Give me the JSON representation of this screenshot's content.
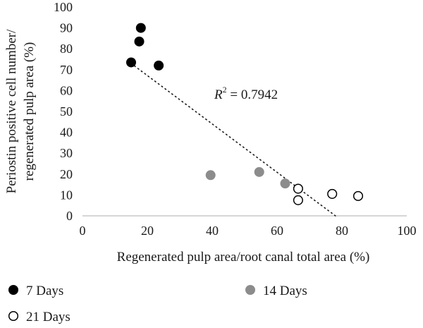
{
  "chart_data": {
    "type": "scatter",
    "xlabel": "Regenerated pulp area/root canal total area (%)",
    "ylabel_line1": "Periostin positive cell number/",
    "ylabel_line2": "regenerated pulp area (%)",
    "xlim": [
      0,
      100
    ],
    "ylim": [
      0,
      100
    ],
    "xticks": [
      "0",
      "20",
      "40",
      "60",
      "80",
      "100"
    ],
    "yticks": [
      "0",
      "10",
      "20",
      "30",
      "40",
      "50",
      "60",
      "70",
      "80",
      "90",
      "100"
    ],
    "annotation": {
      "symbol": "R",
      "exponent": "2",
      "rest": " = 0.7942"
    },
    "trendline": {
      "style": "dotted",
      "from": [
        15,
        73
      ],
      "to": [
        78,
        0
      ]
    },
    "legend_placement": "bottom",
    "series": [
      {
        "name": "7 Days",
        "marker": "filled",
        "color": "#000000",
        "points": [
          [
            15,
            73.5
          ],
          [
            17.5,
            83.5
          ],
          [
            18,
            90
          ],
          [
            23.5,
            72
          ]
        ]
      },
      {
        "name": "14 Days",
        "marker": "filled",
        "color": "#8c8c8c",
        "points": [
          [
            39.5,
            19.5
          ],
          [
            54.5,
            21
          ],
          [
            62.5,
            15.5
          ]
        ]
      },
      {
        "name": "21 Days",
        "marker": "open",
        "color": "#000000",
        "points": [
          [
            66.5,
            13
          ],
          [
            66.5,
            7.5
          ],
          [
            77,
            10.5
          ],
          [
            85,
            9.5
          ]
        ]
      }
    ]
  }
}
